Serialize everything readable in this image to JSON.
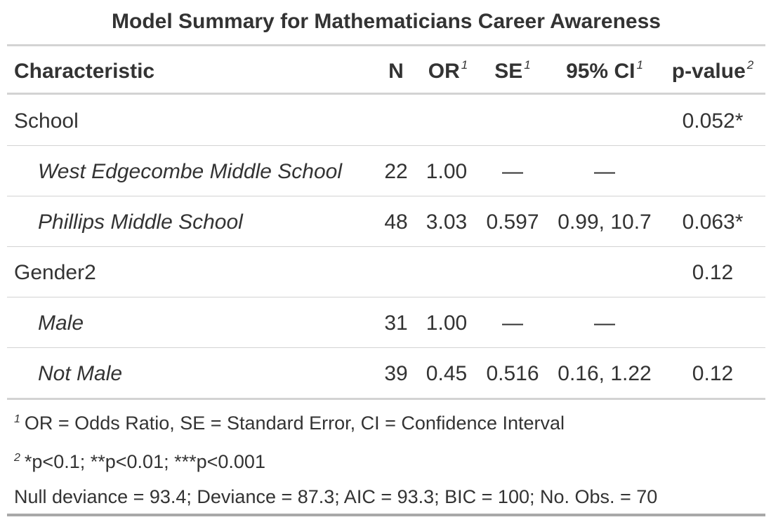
{
  "table": {
    "title": "Model Summary for Mathematicians Career Awareness",
    "headers": {
      "characteristic": "Characteristic",
      "n": "N",
      "or": "OR",
      "or_mark": "1",
      "se": "SE",
      "se_mark": "1",
      "ci": "95% CI",
      "ci_mark": "1",
      "pvalue": "p-value",
      "pvalue_mark": "2"
    },
    "rows": [
      {
        "label": "School",
        "n": "",
        "or": "",
        "se": "",
        "ci": "",
        "p": "0.052*",
        "italic": false
      },
      {
        "label": "West Edgecombe Middle School",
        "n": "22",
        "or": "1.00",
        "se": "—",
        "ci": "—",
        "p": "",
        "italic": true
      },
      {
        "label": "Phillips Middle School",
        "n": "48",
        "or": "3.03",
        "se": "0.597",
        "ci": "0.99, 10.7",
        "p": "0.063*",
        "italic": true
      },
      {
        "label": "Gender2",
        "n": "",
        "or": "",
        "se": "",
        "ci": "",
        "p": "0.12",
        "italic": false
      },
      {
        "label": "Male",
        "n": "31",
        "or": "1.00",
        "se": "—",
        "ci": "—",
        "p": "",
        "italic": true
      },
      {
        "label": "Not Male",
        "n": "39",
        "or": "0.45",
        "se": "0.516",
        "ci": "0.16, 1.22",
        "p": "0.12",
        "italic": true
      }
    ],
    "footnotes": {
      "note1_mark": "1",
      "note1": "OR = Odds Ratio, SE = Standard Error, CI = Confidence Interval",
      "note2_mark": "2",
      "note2": "*p<0.1; **p<0.01; ***p<0.001",
      "stats": "Null deviance = 93.4; Deviance = 87.3; AIC = 93.3; BIC = 100; No. Obs. = 70"
    }
  }
}
